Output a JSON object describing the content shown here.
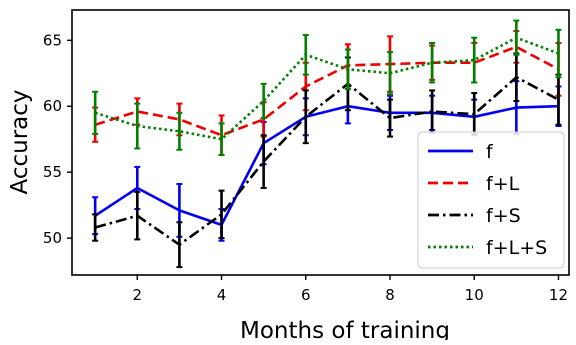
{
  "chart_data": {
    "type": "line",
    "title": "",
    "xlabel": "Months of training",
    "ylabel": "Accuracy",
    "xlim": [
      0.45,
      12.25
    ],
    "ylim": [
      47.2,
      67.3
    ],
    "x": [
      1,
      2,
      3,
      4,
      5,
      6,
      7,
      8,
      9,
      10,
      11,
      12
    ],
    "x_ticks": [
      2,
      4,
      6,
      8,
      10,
      12
    ],
    "y_ticks": [
      50,
      55,
      60,
      65
    ],
    "grid": false,
    "legend_position": "lower-right",
    "series": [
      {
        "name": "f",
        "color": "#0000ee",
        "dash": "solid",
        "values": [
          51.7,
          53.8,
          52.1,
          51.0,
          57.2,
          59.2,
          60.0,
          59.5,
          59.5,
          59.2,
          59.9,
          60.0
        ],
        "error": [
          1.4,
          1.6,
          2.0,
          1.2,
          1.6,
          1.4,
          1.3,
          1.3,
          1.3,
          1.3,
          2.0,
          1.5
        ]
      },
      {
        "name": "f+L",
        "color": "#ee0000",
        "dash": "dashed",
        "values": [
          58.6,
          59.6,
          59.0,
          57.8,
          59.0,
          61.5,
          63.1,
          63.2,
          63.3,
          63.3,
          64.5,
          62.8
        ],
        "error": [
          1.3,
          1.0,
          1.2,
          1.5,
          1.3,
          1.8,
          1.6,
          2.1,
          1.3,
          1.5,
          1.2,
          2.0
        ]
      },
      {
        "name": "f+S",
        "color": "#000000",
        "dash": "dashdot",
        "values": [
          50.8,
          51.7,
          49.5,
          51.8,
          55.8,
          59.2,
          61.7,
          59.1,
          59.6,
          59.4,
          62.2,
          60.5
        ],
        "error": [
          1.0,
          1.8,
          1.7,
          1.8,
          2.0,
          2.0,
          2.0,
          1.4,
          1.6,
          1.6,
          1.8,
          1.9
        ]
      },
      {
        "name": "f+L+S",
        "color": "#008000",
        "dash": "dotted",
        "values": [
          59.5,
          58.5,
          58.1,
          57.5,
          60.4,
          63.9,
          62.8,
          62.5,
          63.3,
          63.5,
          65.2,
          64.0
        ],
        "error": [
          1.6,
          1.7,
          1.4,
          1.2,
          1.3,
          1.5,
          1.5,
          1.6,
          1.5,
          1.7,
          1.3,
          1.8
        ]
      }
    ]
  }
}
